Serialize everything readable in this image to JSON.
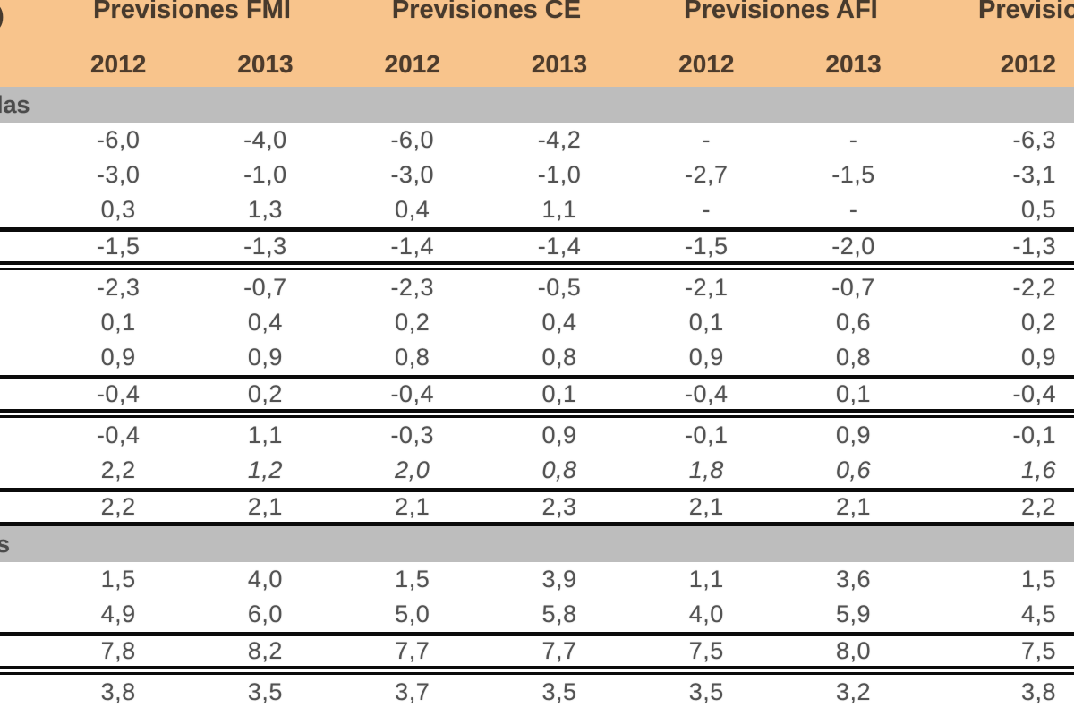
{
  "table": {
    "title_fragment_note": "left label column cropped out of view",
    "header": {
      "stub_fragment": ")",
      "groups": [
        "Previsiones FMI",
        "Previsiones CE",
        "Previsiones AFI",
        "Previsio"
      ],
      "years": [
        "2012",
        "2013",
        "2012",
        "2013",
        "2012",
        "2013",
        "2012"
      ]
    },
    "colors": {
      "header_bg": "#F8C48C",
      "section_bg": "#BDBDBD",
      "rule": "#0b0b0b",
      "header_text": "#473A2D",
      "value_text": "#535353"
    },
    "rows": [
      {
        "type": "section",
        "label": "las"
      },
      {
        "type": "data",
        "cells": [
          "-6,0",
          "-4,0",
          "-6,0",
          "-4,2",
          "-",
          "-",
          "-6,3"
        ]
      },
      {
        "type": "data",
        "cells": [
          "-3,0",
          "-1,0",
          "-3,0",
          "-1,0",
          "-2,7",
          "-1,5",
          "-3,1"
        ]
      },
      {
        "type": "data",
        "cells": [
          "0,3",
          "1,3",
          "0,4",
          "1,1",
          "-",
          "-",
          "0,5"
        ]
      },
      {
        "type": "rule"
      },
      {
        "type": "total",
        "cells": [
          "-1,5",
          "-1,3",
          "-1,4",
          "-1,4",
          "-1,5",
          "-2,0",
          "-1,3"
        ]
      },
      {
        "type": "rule-double"
      },
      {
        "type": "data",
        "cells": [
          "-2,3",
          "-0,7",
          "-2,3",
          "-0,5",
          "-2,1",
          "-0,7",
          "-2,2"
        ]
      },
      {
        "type": "data",
        "cells": [
          "0,1",
          "0,4",
          "0,2",
          "0,4",
          "0,1",
          "0,6",
          "0,2"
        ]
      },
      {
        "type": "data",
        "cells": [
          "0,9",
          "0,9",
          "0,8",
          "0,8",
          "0,9",
          "0,8",
          "0,9"
        ]
      },
      {
        "type": "rule"
      },
      {
        "type": "total",
        "cells": [
          "-0,4",
          "0,2",
          "-0,4",
          "0,1",
          "-0,4",
          "0,1",
          "-0,4"
        ]
      },
      {
        "type": "rule-double"
      },
      {
        "type": "data",
        "stub": ")",
        "cells": [
          "-0,4",
          "1,1",
          "-0,3",
          "0,9",
          "-0,1",
          "0,9",
          "-0,1"
        ]
      },
      {
        "type": "data",
        "cells": [
          "2,2",
          "1,2",
          "2,0",
          "0,8",
          "1,8",
          "0,6",
          "1,6"
        ],
        "italic": [
          false,
          true,
          true,
          true,
          true,
          true,
          true
        ]
      },
      {
        "type": "rule"
      },
      {
        "type": "total",
        "cells": [
          "2,2",
          "2,1",
          "2,1",
          "2,3",
          "2,1",
          "2,1",
          "2,2"
        ]
      },
      {
        "type": "rule"
      },
      {
        "type": "section",
        "label": "s"
      },
      {
        "type": "data",
        "cells": [
          "1,5",
          "4,0",
          "1,5",
          "3,9",
          "1,1",
          "3,6",
          "1,5"
        ]
      },
      {
        "type": "data",
        "cells": [
          "4,9",
          "6,0",
          "5,0",
          "5,8",
          "4,0",
          "5,9",
          "4,5"
        ]
      },
      {
        "type": "rule"
      },
      {
        "type": "total",
        "cells": [
          "7,8",
          "8,2",
          "7,7",
          "7,7",
          "7,5",
          "8,0",
          "7,5"
        ]
      },
      {
        "type": "rule-double"
      },
      {
        "type": "data",
        "cells": [
          "3,8",
          "3,5",
          "3,7",
          "3,5",
          "3,5",
          "3,2",
          "3,8"
        ]
      }
    ]
  }
}
